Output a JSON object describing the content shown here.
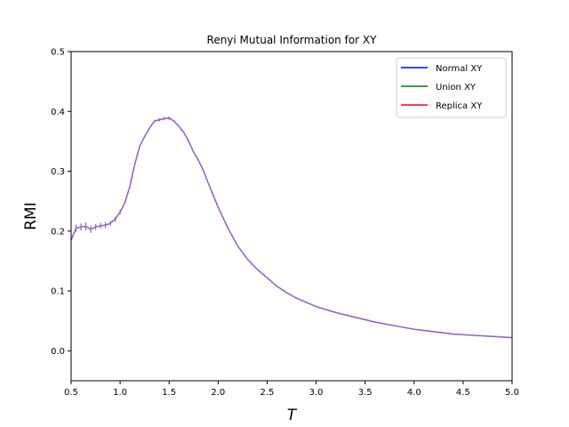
{
  "chart_data": {
    "type": "line",
    "title": "Renyi Mutual Information for XY",
    "xlabel": "T",
    "ylabel": "RMI",
    "xlim": [
      0.5,
      5.0
    ],
    "ylim": [
      -0.05,
      0.5
    ],
    "xticks": [
      0.5,
      1.0,
      1.5,
      2.0,
      2.5,
      3.0,
      3.5,
      4.0,
      4.5,
      5.0
    ],
    "xtick_labels": [
      "0.5",
      "1.0",
      "1.5",
      "2.0",
      "2.5",
      "3.0",
      "3.5",
      "4.0",
      "4.5",
      "5.0"
    ],
    "yticks": [
      0.0,
      0.1,
      0.2,
      0.3,
      0.4,
      0.5
    ],
    "ytick_labels": [
      "0.0",
      "0.1",
      "0.2",
      "0.3",
      "0.4",
      "0.5"
    ],
    "grid": false,
    "legend_position": "top-right",
    "legend": [
      {
        "name": "Normal XY",
        "color": "#0000ff"
      },
      {
        "name": "Union XY",
        "color": "#008000"
      },
      {
        "name": "Replica XY",
        "color": "#ff0000"
      }
    ],
    "plotted_color": "#9467bd",
    "x": [
      0.5,
      0.55,
      0.6,
      0.65,
      0.7,
      0.75,
      0.8,
      0.85,
      0.9,
      0.95,
      1.0,
      1.05,
      1.1,
      1.15,
      1.2,
      1.25,
      1.3,
      1.35,
      1.4,
      1.45,
      1.5,
      1.55,
      1.6,
      1.65,
      1.7,
      1.75,
      1.8,
      1.85,
      1.9,
      1.95,
      2.0,
      2.1,
      2.2,
      2.3,
      2.4,
      2.5,
      2.6,
      2.7,
      2.8,
      2.9,
      3.0,
      3.2,
      3.4,
      3.6,
      3.8,
      4.0,
      4.2,
      4.4,
      4.6,
      4.8,
      5.0
    ],
    "y": [
      0.185,
      0.205,
      0.207,
      0.208,
      0.203,
      0.207,
      0.209,
      0.21,
      0.213,
      0.22,
      0.232,
      0.248,
      0.275,
      0.312,
      0.342,
      0.358,
      0.372,
      0.384,
      0.386,
      0.388,
      0.389,
      0.384,
      0.375,
      0.365,
      0.35,
      0.332,
      0.318,
      0.301,
      0.28,
      0.26,
      0.24,
      0.205,
      0.175,
      0.153,
      0.136,
      0.122,
      0.108,
      0.097,
      0.088,
      0.081,
      0.074,
      0.064,
      0.056,
      0.048,
      0.042,
      0.036,
      0.032,
      0.028,
      0.026,
      0.024,
      0.022
    ],
    "error_bars": [
      {
        "x": 0.55,
        "y": 0.205,
        "err": 0.006
      },
      {
        "x": 0.6,
        "y": 0.207,
        "err": 0.006
      },
      {
        "x": 0.65,
        "y": 0.208,
        "err": 0.007
      },
      {
        "x": 0.7,
        "y": 0.203,
        "err": 0.006
      },
      {
        "x": 0.75,
        "y": 0.207,
        "err": 0.005
      },
      {
        "x": 0.8,
        "y": 0.209,
        "err": 0.005
      },
      {
        "x": 0.85,
        "y": 0.21,
        "err": 0.005
      },
      {
        "x": 0.9,
        "y": 0.213,
        "err": 0.004
      },
      {
        "x": 0.95,
        "y": 0.22,
        "err": 0.004
      },
      {
        "x": 1.0,
        "y": 0.232,
        "err": 0.004
      },
      {
        "x": 1.4,
        "y": 0.386,
        "err": 0.003
      },
      {
        "x": 1.45,
        "y": 0.388,
        "err": 0.003
      },
      {
        "x": 1.5,
        "y": 0.389,
        "err": 0.003
      }
    ]
  }
}
